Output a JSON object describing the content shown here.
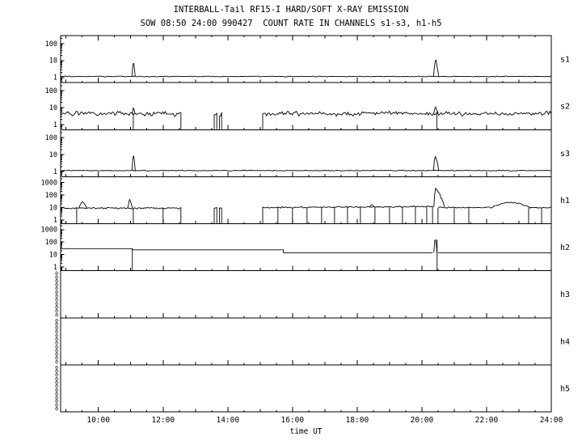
{
  "header": {
    "title": "INTERBALL-Tail RF15-I HARD/SOFT X-RAY EMISSION",
    "subtitle": "SOW 08:50 24:00 990427  COUNT RATE IN CHANNELS s1-s3, h1-h5"
  },
  "colors": {
    "background": "#ffffff",
    "foreground": "#000000"
  },
  "chart_data": {
    "type": "line",
    "title": "INTERBALL-Tail RF15-I HARD/SOFT X-RAY EMISSION",
    "subtitle": "SOW 08:50 24:00 990427  COUNT RATE IN CHANNELS s1-s3, h1-h5",
    "xlabel": "time UT",
    "y_scale": "log",
    "x_range_hours": [
      8.833,
      24.0
    ],
    "x_major_ticks": [
      10,
      12,
      14,
      16,
      18,
      20,
      22,
      24
    ],
    "x_tick_labels": [
      "10:00",
      "12:00",
      "14:00",
      "16:00",
      "18:00",
      "20:00",
      "22:00",
      "24:00"
    ],
    "panels": [
      {
        "label": "s1",
        "ymin": 0.5,
        "ymax": 300,
        "yticks": [
          1,
          10,
          100
        ],
        "segments": [
          {
            "t0": 8.833,
            "t1": 24.0,
            "v0": 1.15,
            "v1": 1.15,
            "noise": 0.025
          }
        ],
        "spikes": [
          {
            "t": 11.08,
            "peak": 11,
            "base": 1.15,
            "wl": 0.04,
            "wr": 0.06,
            "jitter": 0.1
          },
          {
            "t": 20.42,
            "peak": 11,
            "base": 1.15,
            "wl": 0.06,
            "wr": 0.1,
            "jitter": 0.15
          }
        ]
      },
      {
        "label": "s2",
        "ymin": 0.5,
        "ymax": 300,
        "yticks": [
          1,
          10,
          100
        ],
        "segments": [
          {
            "t0": 8.833,
            "t1": 12.55,
            "v0": 4.5,
            "v1": 4.5,
            "noise": 0.13,
            "edges": "R"
          },
          {
            "t0": 13.58,
            "t1": 13.66,
            "v0": 4.0,
            "v1": 4.0,
            "noise": 0.13,
            "edges": "LR"
          },
          {
            "t0": 13.74,
            "t1": 13.81,
            "v0": 4.0,
            "v1": 4.0,
            "noise": 0.13,
            "edges": "LR"
          },
          {
            "t0": 15.08,
            "t1": 24.0,
            "v0": 4.5,
            "v1": 4.5,
            "noise": 0.13,
            "edges": "L"
          }
        ],
        "spikes": [
          {
            "t": 11.08,
            "peak": 11,
            "base": 4.5,
            "wl": 0.03,
            "wr": 0.05,
            "jitter": 0.1
          },
          {
            "t": 20.42,
            "peak": 12,
            "base": 4.5,
            "wl": 0.05,
            "wr": 0.08,
            "jitter": 0.12
          }
        ],
        "dropouts": [
          {
            "t": 11.08,
            "from": 4.5
          },
          {
            "t": 20.46,
            "from": 4.5
          }
        ]
      },
      {
        "label": "s3",
        "ymin": 0.5,
        "ymax": 300,
        "yticks": [
          1,
          10,
          100
        ],
        "segments": [
          {
            "t0": 8.833,
            "t1": 24.0,
            "v0": 1.15,
            "v1": 1.15,
            "noise": 0.025
          }
        ],
        "spikes": [
          {
            "t": 11.08,
            "peak": 12,
            "base": 1.15,
            "wl": 0.04,
            "wr": 0.06,
            "jitter": 0.1
          },
          {
            "t": 20.42,
            "peak": 10,
            "base": 1.15,
            "wl": 0.06,
            "wr": 0.1,
            "jitter": 0.15
          }
        ]
      },
      {
        "label": "h1",
        "ymin": 0.5,
        "ymax": 3000,
        "yticks": [
          1,
          10,
          100,
          1000
        ],
        "segments": [
          {
            "t0": 8.833,
            "t1": 12.55,
            "v0": 9,
            "v1": 9,
            "noise": 0.07,
            "edges": "R"
          },
          {
            "t0": 13.58,
            "t1": 13.66,
            "v0": 9,
            "v1": 9,
            "noise": 0.07,
            "edges": "LR"
          },
          {
            "t0": 13.74,
            "t1": 13.81,
            "v0": 9,
            "v1": 9,
            "noise": 0.07,
            "edges": "LR"
          },
          {
            "t0": 15.08,
            "t1": 20.33,
            "v0": 10,
            "v1": 12,
            "noise": 0.055,
            "edges": "LR"
          },
          {
            "t0": 20.5,
            "t1": 22.15,
            "v0": 10,
            "v1": 10,
            "noise": 0.055,
            "edges": "L"
          },
          {
            "t0": 22.15,
            "t1": 23.35,
            "v0": 10,
            "v1": 10,
            "vm": 26,
            "noise": 0.05
          },
          {
            "t0": 23.35,
            "t1": 24.0,
            "v0": 10,
            "v1": 10,
            "noise": 0.05
          }
        ],
        "spikes": [
          {
            "t": 9.5,
            "peak": 30,
            "base": 9,
            "wl": 0.1,
            "wr": 0.14,
            "jitter": 0.08
          },
          {
            "t": 10.97,
            "peak": 42,
            "base": 9,
            "wl": 0.06,
            "wr": 0.08,
            "jitter": 0.1
          },
          {
            "t": 18.45,
            "peak": 18,
            "base": 11,
            "wl": 0.07,
            "wr": 0.07,
            "jitter": 0.05
          },
          {
            "t": 20.42,
            "peak": 420,
            "base": 11,
            "wl": 0.05,
            "wr": 0.28,
            "jitter": 0.12
          }
        ],
        "dropouts": [
          {
            "t": 9.33,
            "from": 9
          },
          {
            "t": 11.08,
            "from": 9
          },
          {
            "t": 12.0,
            "from": 9
          },
          {
            "t": 15.55,
            "from": 10
          },
          {
            "t": 16.0,
            "from": 10
          },
          {
            "t": 16.45,
            "from": 10
          },
          {
            "t": 16.9,
            "from": 11
          },
          {
            "t": 17.3,
            "from": 11
          },
          {
            "t": 17.7,
            "from": 11
          },
          {
            "t": 18.1,
            "from": 11
          },
          {
            "t": 18.55,
            "from": 11
          },
          {
            "t": 19.0,
            "from": 11
          },
          {
            "t": 19.4,
            "from": 11
          },
          {
            "t": 19.8,
            "from": 12
          },
          {
            "t": 20.15,
            "from": 12
          },
          {
            "t": 21.0,
            "from": 10
          },
          {
            "t": 21.45,
            "from": 10
          },
          {
            "t": 23.3,
            "from": 10
          },
          {
            "t": 23.7,
            "from": 10
          }
        ]
      },
      {
        "label": "h2",
        "ymin": 0.5,
        "ymax": 3000,
        "yticks": [
          1,
          10,
          100,
          1000
        ],
        "steps": [
          {
            "t0": 8.833,
            "t1": 11.05,
            "v": 30
          },
          {
            "t0": 11.05,
            "t1": 15.72,
            "v": 24
          },
          {
            "t0": 15.72,
            "t1": 20.33,
            "v": 14
          },
          {
            "t0": 20.5,
            "t1": 24.0,
            "v": 14
          }
        ],
        "spikes": [
          {
            "t": 20.41,
            "peak": 260,
            "base": 14,
            "wl": 0.04,
            "wr": 0.06,
            "jitter": 0.15
          }
        ],
        "dropouts": [
          {
            "t": 11.05,
            "from": 30
          },
          {
            "t": 20.47,
            "from": 160
          }
        ]
      },
      {
        "label": "h3",
        "empty": true,
        "ytick_zeros": 12
      },
      {
        "label": "h4",
        "empty": true,
        "ytick_zeros": 12
      },
      {
        "label": "h5",
        "empty": true,
        "ytick_zeros": 12
      }
    ]
  }
}
